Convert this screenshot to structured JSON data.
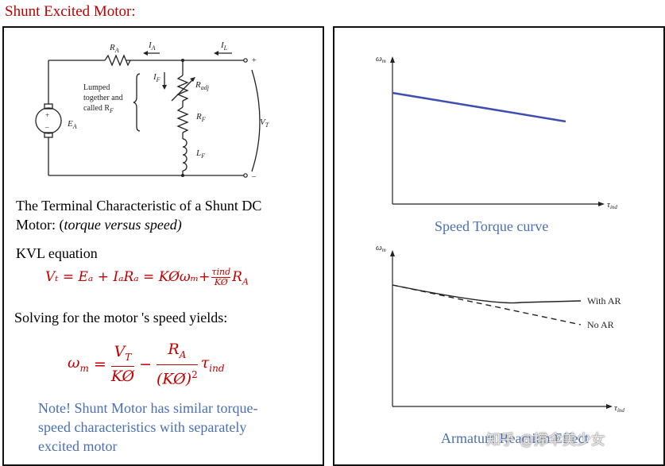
{
  "title": "Shunt Excited Motor:",
  "circuit": {
    "ra": "R",
    "ra_sub": "A",
    "ia": "I",
    "ia_sub": "A",
    "il": "I",
    "il_sub": "L",
    "if": "I",
    "if_sub": "F",
    "radj": "R",
    "radj_sub": "adj",
    "rf": "R",
    "rf_sub": "F",
    "lf": "L",
    "lf_sub": "F",
    "ea": "E",
    "ea_sub": "A",
    "vt": "V",
    "vt_sub": "T",
    "lumped_line1": "Lumped",
    "lumped_line2": "together and",
    "lumped_line3": "called R",
    "lumped_sub": "F",
    "plus": "+",
    "minus": "–"
  },
  "text": {
    "terminal_line1": "The Terminal Characteristic of a Shunt DC",
    "terminal_line2_prefix": "Motor: (",
    "terminal_line2_italic": "torque versus speed)",
    "kvl": "KVL equation",
    "solving": "Solving for the motor 's speed yields:",
    "note_line1": "Note! Shunt Motor has similar torque-",
    "note_line2": "speed characteristics with separately",
    "note_line3": "excited motor"
  },
  "equations": {
    "kvl_eq": "Vₜ = Eₐ + IₐRₐ = KØωₘ+",
    "kvl_frac_num": "τind",
    "kvl_frac_den": "KØ",
    "kvl_tail": "R",
    "kvl_tail_sub": "A",
    "speed_lhs": "ω",
    "speed_lhs_sub": "m",
    "speed_frac1_num": "V",
    "speed_frac1_num_sub": "T",
    "speed_frac1_den": "KØ",
    "speed_frac2_num": "R",
    "speed_frac2_num_sub": "A",
    "speed_frac2_den": "(KØ)",
    "speed_tail": "τ",
    "speed_tail_sub": "ind"
  },
  "graph1": {
    "y_label": "ω",
    "y_label_sub": "m",
    "x_label": "τ",
    "x_label_sub": "ind",
    "caption": "Speed Torque curve",
    "line_color": "#3f4fb0"
  },
  "graph2": {
    "y_label": "ω",
    "y_label_sub": "m",
    "x_label": "τ",
    "x_label_sub": "ind",
    "with_ar": "With AR",
    "no_ar": "No AR",
    "caption": "Armature Reaction Effect"
  },
  "watermark": "知乎 @撑伞美少女",
  "colors": {
    "title_red": "#c00000",
    "note_blue": "#4a6fb5"
  }
}
